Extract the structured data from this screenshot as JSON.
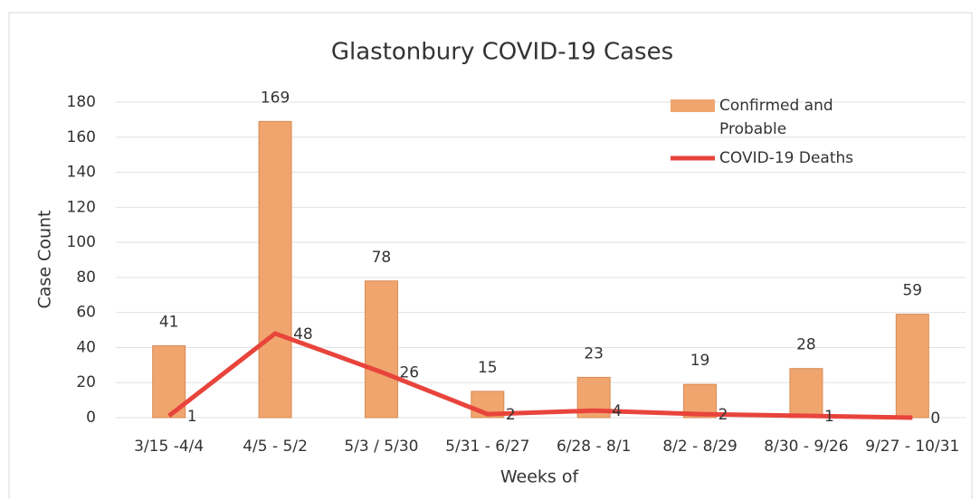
{
  "chart_data": {
    "type": "bar",
    "title": "Glastonbury COVID-19 Cases",
    "x_label": "Weeks of",
    "y_label": "Case Count",
    "categories": [
      "3/15 -4/4",
      "4/5 - 5/2",
      "5/3 / 5/30",
      "5/31 - 6/27",
      "6/28 - 8/1",
      "8/2 - 8/29",
      "8/30 - 9/26",
      "9/27 - 10/31"
    ],
    "series": [
      {
        "name": "Confirmed and Probable",
        "type": "bar",
        "color": "#f0a56e",
        "values": [
          41,
          169,
          78,
          15,
          23,
          19,
          28,
          59
        ]
      },
      {
        "name": "COVID-19 Deaths",
        "type": "line",
        "color": "#e8443c",
        "values": [
          1,
          48,
          26,
          2,
          4,
          2,
          1,
          0
        ]
      }
    ],
    "ylim": [
      0,
      180
    ],
    "yticks": [
      0,
      20,
      40,
      60,
      80,
      100,
      120,
      140,
      160,
      180
    ],
    "grid": true,
    "legend": "top-right"
  }
}
